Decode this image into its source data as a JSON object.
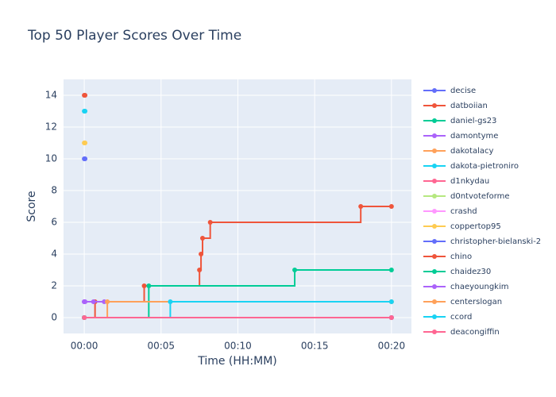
{
  "chart_data": {
    "type": "line",
    "line_shape": "hv",
    "title": "Top 50 Player Scores Over Time",
    "x_label": "Time (HH:MM)",
    "y_label": "Score",
    "xlim": [
      -1.35,
      21.3
    ],
    "ylim": [
      -1,
      15
    ],
    "xticks": [
      {
        "value": 0,
        "label": "00:00"
      },
      {
        "value": 5,
        "label": "00:05"
      },
      {
        "value": 10,
        "label": "00:10"
      },
      {
        "value": 15,
        "label": "00:15"
      },
      {
        "value": 20,
        "label": "00:20"
      }
    ],
    "yticks": [
      0,
      2,
      4,
      6,
      8,
      10,
      12,
      14
    ],
    "grid": true,
    "legend": "right",
    "series": [
      {
        "name": "decise",
        "color": "#636efa",
        "x": [
          0,
          0.05
        ],
        "values": [
          10,
          10
        ]
      },
      {
        "name": "datboiian",
        "color": "#EF553B",
        "x": [
          0,
          0.05
        ],
        "values": [
          14,
          14
        ]
      },
      {
        "name": "daniel-gs23",
        "color": "#00cc96",
        "x": [
          0,
          20
        ],
        "values": [
          0,
          0
        ]
      },
      {
        "name": "damontyme",
        "color": "#ab63fa",
        "x": [
          0,
          0.05
        ],
        "values": [
          1,
          1
        ]
      },
      {
        "name": "dakotalacy",
        "color": "#FFA15A",
        "x": [
          0,
          20
        ],
        "values": [
          0,
          0
        ]
      },
      {
        "name": "dakota-pietroniro",
        "color": "#19d3f3",
        "x": [
          0,
          0.05
        ],
        "values": [
          13,
          13
        ]
      },
      {
        "name": "d1nkydau",
        "color": "#FF6692",
        "x": [
          0,
          20
        ],
        "values": [
          0,
          0
        ]
      },
      {
        "name": "d0ntvoteforme",
        "color": "#B6E880",
        "x": [
          0,
          20
        ],
        "values": [
          0,
          0
        ]
      },
      {
        "name": "crashd",
        "color": "#FF97FF",
        "x": [
          0,
          20
        ],
        "values": [
          0,
          0
        ]
      },
      {
        "name": "coppertop95",
        "color": "#FECB52",
        "x": [
          0,
          0.05
        ],
        "values": [
          11,
          11
        ]
      },
      {
        "name": "christopher-bielanski-2",
        "color": "#636efa",
        "x": [
          0,
          20
        ],
        "values": [
          0,
          0
        ]
      },
      {
        "name": "chino",
        "color": "#EF553B",
        "x": [
          0,
          0.7,
          3.9,
          7.5,
          7.6,
          7.7,
          8.2,
          18,
          20
        ],
        "values": [
          0,
          1,
          2,
          3,
          4,
          5,
          6,
          7,
          7
        ]
      },
      {
        "name": "chaidez30",
        "color": "#00cc96",
        "x": [
          0,
          4.2,
          13.7,
          20
        ],
        "values": [
          0,
          2,
          3,
          3
        ]
      },
      {
        "name": "chaeyoungkim",
        "color": "#ab63fa",
        "x": [
          0,
          0.6,
          1.3
        ],
        "values": [
          1,
          1,
          1
        ]
      },
      {
        "name": "centerslogan",
        "color": "#FFA15A",
        "x": [
          0,
          1.5,
          20
        ],
        "values": [
          0,
          1,
          1
        ]
      },
      {
        "name": "ccord",
        "color": "#19d3f3",
        "x": [
          0,
          5.6,
          20
        ],
        "values": [
          0,
          1,
          1
        ]
      },
      {
        "name": "deacongiffin",
        "color": "#FF6692",
        "x": [
          0,
          20
        ],
        "values": [
          0,
          0
        ]
      }
    ]
  }
}
